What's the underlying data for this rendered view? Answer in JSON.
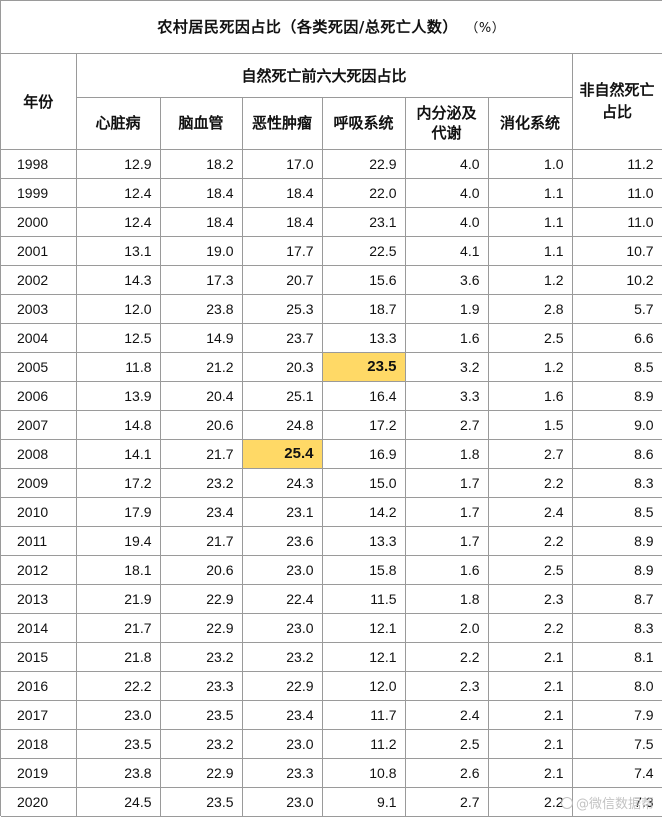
{
  "title": "农村居民死因占比（各类死因/总死亡人数）",
  "unit": "（%）",
  "headers": {
    "year": "年份",
    "group": "自然死亡前六大死因占比",
    "non_natural": "非自然死亡占比",
    "causes": [
      "心脏病",
      "脑血管",
      "恶性肿瘤",
      "呼吸系统",
      "内分泌及代谢",
      "消化系统"
    ]
  },
  "rows": [
    {
      "year": "1998",
      "values": [
        "12.9",
        "18.2",
        "17.0",
        "22.9",
        "4.0",
        "1.0",
        "11.2"
      ]
    },
    {
      "year": "1999",
      "values": [
        "12.4",
        "18.4",
        "18.4",
        "22.0",
        "4.0",
        "1.1",
        "11.0"
      ]
    },
    {
      "year": "2000",
      "values": [
        "12.4",
        "18.4",
        "18.4",
        "23.1",
        "4.0",
        "1.1",
        "11.0"
      ]
    },
    {
      "year": "2001",
      "values": [
        "13.1",
        "19.0",
        "17.7",
        "22.5",
        "4.1",
        "1.1",
        "10.7"
      ]
    },
    {
      "year": "2002",
      "values": [
        "14.3",
        "17.3",
        "20.7",
        "15.6",
        "3.6",
        "1.2",
        "10.2"
      ]
    },
    {
      "year": "2003",
      "values": [
        "12.0",
        "23.8",
        "25.3",
        "18.7",
        "1.9",
        "2.8",
        "5.7"
      ]
    },
    {
      "year": "2004",
      "values": [
        "12.5",
        "14.9",
        "23.7",
        "13.3",
        "1.6",
        "2.5",
        "6.6"
      ]
    },
    {
      "year": "2005",
      "values": [
        "11.8",
        "21.2",
        "20.3",
        "23.5",
        "3.2",
        "1.2",
        "8.5"
      ]
    },
    {
      "year": "2006",
      "values": [
        "13.9",
        "20.4",
        "25.1",
        "16.4",
        "3.3",
        "1.6",
        "8.9"
      ]
    },
    {
      "year": "2007",
      "values": [
        "14.8",
        "20.6",
        "24.8",
        "17.2",
        "2.7",
        "1.5",
        "9.0"
      ]
    },
    {
      "year": "2008",
      "values": [
        "14.1",
        "21.7",
        "25.4",
        "16.9",
        "1.8",
        "2.7",
        "8.6"
      ]
    },
    {
      "year": "2009",
      "values": [
        "17.2",
        "23.2",
        "24.3",
        "15.0",
        "1.7",
        "2.2",
        "8.3"
      ]
    },
    {
      "year": "2010",
      "values": [
        "17.9",
        "23.4",
        "23.1",
        "14.2",
        "1.7",
        "2.4",
        "8.5"
      ]
    },
    {
      "year": "2011",
      "values": [
        "19.4",
        "21.7",
        "23.6",
        "13.3",
        "1.7",
        "2.2",
        "8.9"
      ]
    },
    {
      "year": "2012",
      "values": [
        "18.1",
        "20.6",
        "23.0",
        "15.8",
        "1.6",
        "2.5",
        "8.9"
      ]
    },
    {
      "year": "2013",
      "values": [
        "21.9",
        "22.9",
        "22.4",
        "11.5",
        "1.8",
        "2.3",
        "8.7"
      ]
    },
    {
      "year": "2014",
      "values": [
        "21.7",
        "22.9",
        "23.0",
        "12.1",
        "2.0",
        "2.2",
        "8.3"
      ]
    },
    {
      "year": "2015",
      "values": [
        "21.8",
        "23.2",
        "23.2",
        "12.1",
        "2.2",
        "2.1",
        "8.1"
      ]
    },
    {
      "year": "2016",
      "values": [
        "22.2",
        "23.3",
        "22.9",
        "12.0",
        "2.3",
        "2.1",
        "8.0"
      ]
    },
    {
      "year": "2017",
      "values": [
        "23.0",
        "23.5",
        "23.4",
        "11.7",
        "2.4",
        "2.1",
        "7.9"
      ]
    },
    {
      "year": "2018",
      "values": [
        "23.5",
        "23.2",
        "23.0",
        "11.2",
        "2.5",
        "2.1",
        "7.5"
      ]
    },
    {
      "year": "2019",
      "values": [
        "23.8",
        "22.9",
        "23.3",
        "10.8",
        "2.6",
        "2.1",
        "7.4"
      ]
    },
    {
      "year": "2020",
      "values": [
        "24.5",
        "23.5",
        "23.0",
        "9.1",
        "2.7",
        "2.2",
        "7.3"
      ]
    }
  ],
  "highlights": [
    {
      "year": "2005",
      "column": 3
    },
    {
      "year": "2008",
      "column": 2
    }
  ],
  "highlight_color": "#ffd966",
  "watermark": "@微信数据帮"
}
